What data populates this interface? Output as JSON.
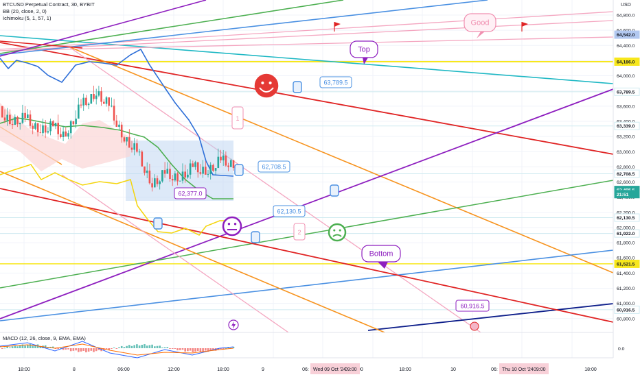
{
  "header": {
    "symbol_line": "BTCUSD Perpetual Contract, 30, BYBIT",
    "bb_line": "BB (20, close, 2, 0)",
    "ichimoku_line": "Ichimoku (5, 1, 57, 1)",
    "macd_line": "MACD (12, 26, close, 9, EMA, EMA)"
  },
  "price_axis": {
    "currency": "USD",
    "ticks": [
      "64,800.0",
      "64,600.0",
      "64,400.0",
      "64,200.0",
      "64,000.0",
      "63,800.0",
      "63,600.0",
      "63,400.0",
      "63,200.0",
      "63,000.0",
      "62,800.0",
      "62,600.0",
      "62,400.0",
      "62,200.0",
      "62,000.0",
      "61,800.0",
      "61,600.0",
      "61,400.0",
      "61,200.0",
      "61,000.0",
      "60,800.0"
    ],
    "labels": [
      {
        "text": "64,542.0",
        "color": "#b2c8f0",
        "text_color": "#131722",
        "price": 64542
      },
      {
        "text": "64,186.0",
        "color": "#f7e71c",
        "text_color": "#131722",
        "price": 64186
      },
      {
        "text": "63,789.5",
        "color": "#ffffff",
        "text_color": "#131722",
        "price": 63789.5
      },
      {
        "text": "63,339.0",
        "color": "#ffffff",
        "text_color": "#131722",
        "price": 63339
      },
      {
        "text": "62,708.5",
        "color": "#ffffff",
        "text_color": "#131722",
        "price": 62708.5
      },
      {
        "text": "62,495.5",
        "color": "#26a69a",
        "text_color": "#ffffff",
        "price": 62495.5
      },
      {
        "text": "21:51",
        "color": "#26a69a",
        "text_color": "#ffffff",
        "price": 62440
      },
      {
        "text": "62,130.5",
        "color": "#ffffff",
        "text_color": "#131722",
        "price": 62130.5
      },
      {
        "text": "61,922.0",
        "color": "#ffffff",
        "text_color": "#131722",
        "price": 61922
      },
      {
        "text": "61,521.5",
        "color": "#f7e71c",
        "text_color": "#131722",
        "price": 61521.5
      },
      {
        "text": "60,916.5",
        "color": "#ffffff",
        "text_color": "#131722",
        "price": 60916.5
      }
    ],
    "macd_zero": "0.0"
  },
  "time_axis": {
    "ticks": [
      "18:00",
      "8",
      "06:00",
      "12:00",
      "18:00",
      "9",
      "06:",
      "12:00",
      "18:00",
      "10",
      "06:",
      "12:00",
      "18:00"
    ],
    "highlights": [
      "Wed 09 Oct '24",
      "09:00",
      "Thu 10 Oct '24",
      "09:00"
    ]
  },
  "annotations": {
    "callouts": [
      "Good",
      "Top",
      "Bottom",
      "63,789.5",
      "62,708.5",
      "62,130.5",
      "62,377.0",
      "60,916.5"
    ],
    "markers": [
      "1",
      "2"
    ]
  },
  "colors": {
    "up": "#26a69a",
    "down": "#ef5350",
    "yellow": "#f7e71c",
    "orange": "#f7931e",
    "purple": "#8e1fbf",
    "green": "#4caf50",
    "blue": "#4a90e2",
    "navy": "#0d1e8a",
    "pink": "#f4a6c0",
    "red": "#e02424",
    "teal": "#1fb8c4"
  },
  "icons": [
    "smiley-face-icon",
    "neutral-face-icon",
    "thumbs-icon",
    "flag-icon",
    "lightning-icon"
  ]
}
